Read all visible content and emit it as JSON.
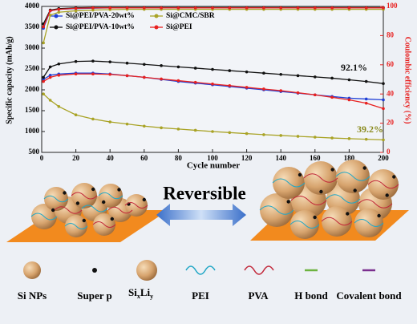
{
  "chart_data": {
    "type": "line",
    "y_label": "Specific capacity (mAh/g)",
    "y2_label": "Coulombic efficiency (%)",
    "x_label": "Cycle number",
    "xlim": [
      0,
      200
    ],
    "xticks": [
      0,
      20,
      40,
      60,
      80,
      100,
      120,
      140,
      160,
      180,
      200
    ],
    "ylim": [
      500,
      4000
    ],
    "yticks": [
      500,
      1000,
      1500,
      2000,
      2500,
      3000,
      3500,
      4000
    ],
    "y2lim": [
      0,
      100
    ],
    "y2ticks": [
      0,
      20,
      40,
      60,
      80,
      100
    ],
    "y2_color": "#e8201f",
    "x": [
      1,
      5,
      10,
      20,
      30,
      40,
      50,
      60,
      70,
      80,
      90,
      100,
      110,
      120,
      130,
      140,
      150,
      160,
      170,
      180,
      190,
      200
    ],
    "series": [
      {
        "name": "Si@PEI/PVA-20wt%",
        "color": "#1f3fd6",
        "values": [
          2250,
          2350,
          2380,
          2400,
          2400,
          2380,
          2340,
          2300,
          2250,
          2200,
          2160,
          2120,
          2080,
          2040,
          2000,
          1960,
          1920,
          1880,
          1840,
          1800,
          1780,
          1760
        ],
        "efficiency": [
          85,
          97,
          98,
          98.5,
          98.8,
          99,
          99,
          99,
          99,
          99,
          99,
          99,
          99,
          99,
          99,
          99,
          99,
          99,
          99,
          99,
          99,
          99
        ]
      },
      {
        "name": "Si@CMC/SBR",
        "color": "#a9a326",
        "values": [
          1900,
          1750,
          1600,
          1400,
          1300,
          1230,
          1180,
          1130,
          1090,
          1060,
          1030,
          1000,
          975,
          950,
          925,
          905,
          885,
          865,
          845,
          830,
          815,
          800
        ],
        "efficiency": [
          75,
          94,
          96,
          97,
          97.5,
          97.8,
          98,
          98,
          98,
          98,
          98,
          98,
          98,
          98,
          98,
          98,
          98,
          98,
          98,
          98,
          98,
          98
        ]
      },
      {
        "name": "Si@PEI/PVA-10wt%",
        "color": "#111111",
        "values": [
          2300,
          2550,
          2620,
          2680,
          2690,
          2670,
          2640,
          2610,
          2580,
          2550,
          2520,
          2490,
          2460,
          2430,
          2400,
          2370,
          2340,
          2310,
          2280,
          2240,
          2200,
          2150
        ],
        "efficiency": [
          88,
          97.5,
          98.5,
          99,
          99.2,
          99.2,
          99.2,
          99.2,
          99.2,
          99.2,
          99.2,
          99.2,
          99.2,
          99.2,
          99.2,
          99.2,
          99.2,
          99.2,
          99.2,
          99.2,
          99.2,
          99.2
        ]
      },
      {
        "name": "Si@PEI",
        "color": "#e8201f",
        "values": [
          2200,
          2300,
          2350,
          2380,
          2380,
          2370,
          2340,
          2300,
          2260,
          2220,
          2180,
          2140,
          2100,
          2060,
          2020,
          1980,
          1930,
          1880,
          1820,
          1760,
          1680,
          1550
        ],
        "efficiency": [
          86,
          97,
          98,
          98.7,
          99,
          99,
          99,
          99,
          99,
          99,
          99,
          99,
          99,
          99,
          99,
          99,
          99,
          99,
          99,
          99,
          99,
          99
        ]
      }
    ],
    "annotations": [
      {
        "text": "92.1%",
        "color": "#111111"
      },
      {
        "text": "39.2%",
        "color": "#8a8a1e"
      }
    ]
  },
  "schematic": {
    "title": "Reversible",
    "legend": [
      "Si NPs",
      "Super p",
      "PEI",
      "PVA",
      "H bond",
      "Covalent bond"
    ],
    "alloy_label": [
      "Si",
      "x",
      "Li",
      "y"
    ]
  }
}
